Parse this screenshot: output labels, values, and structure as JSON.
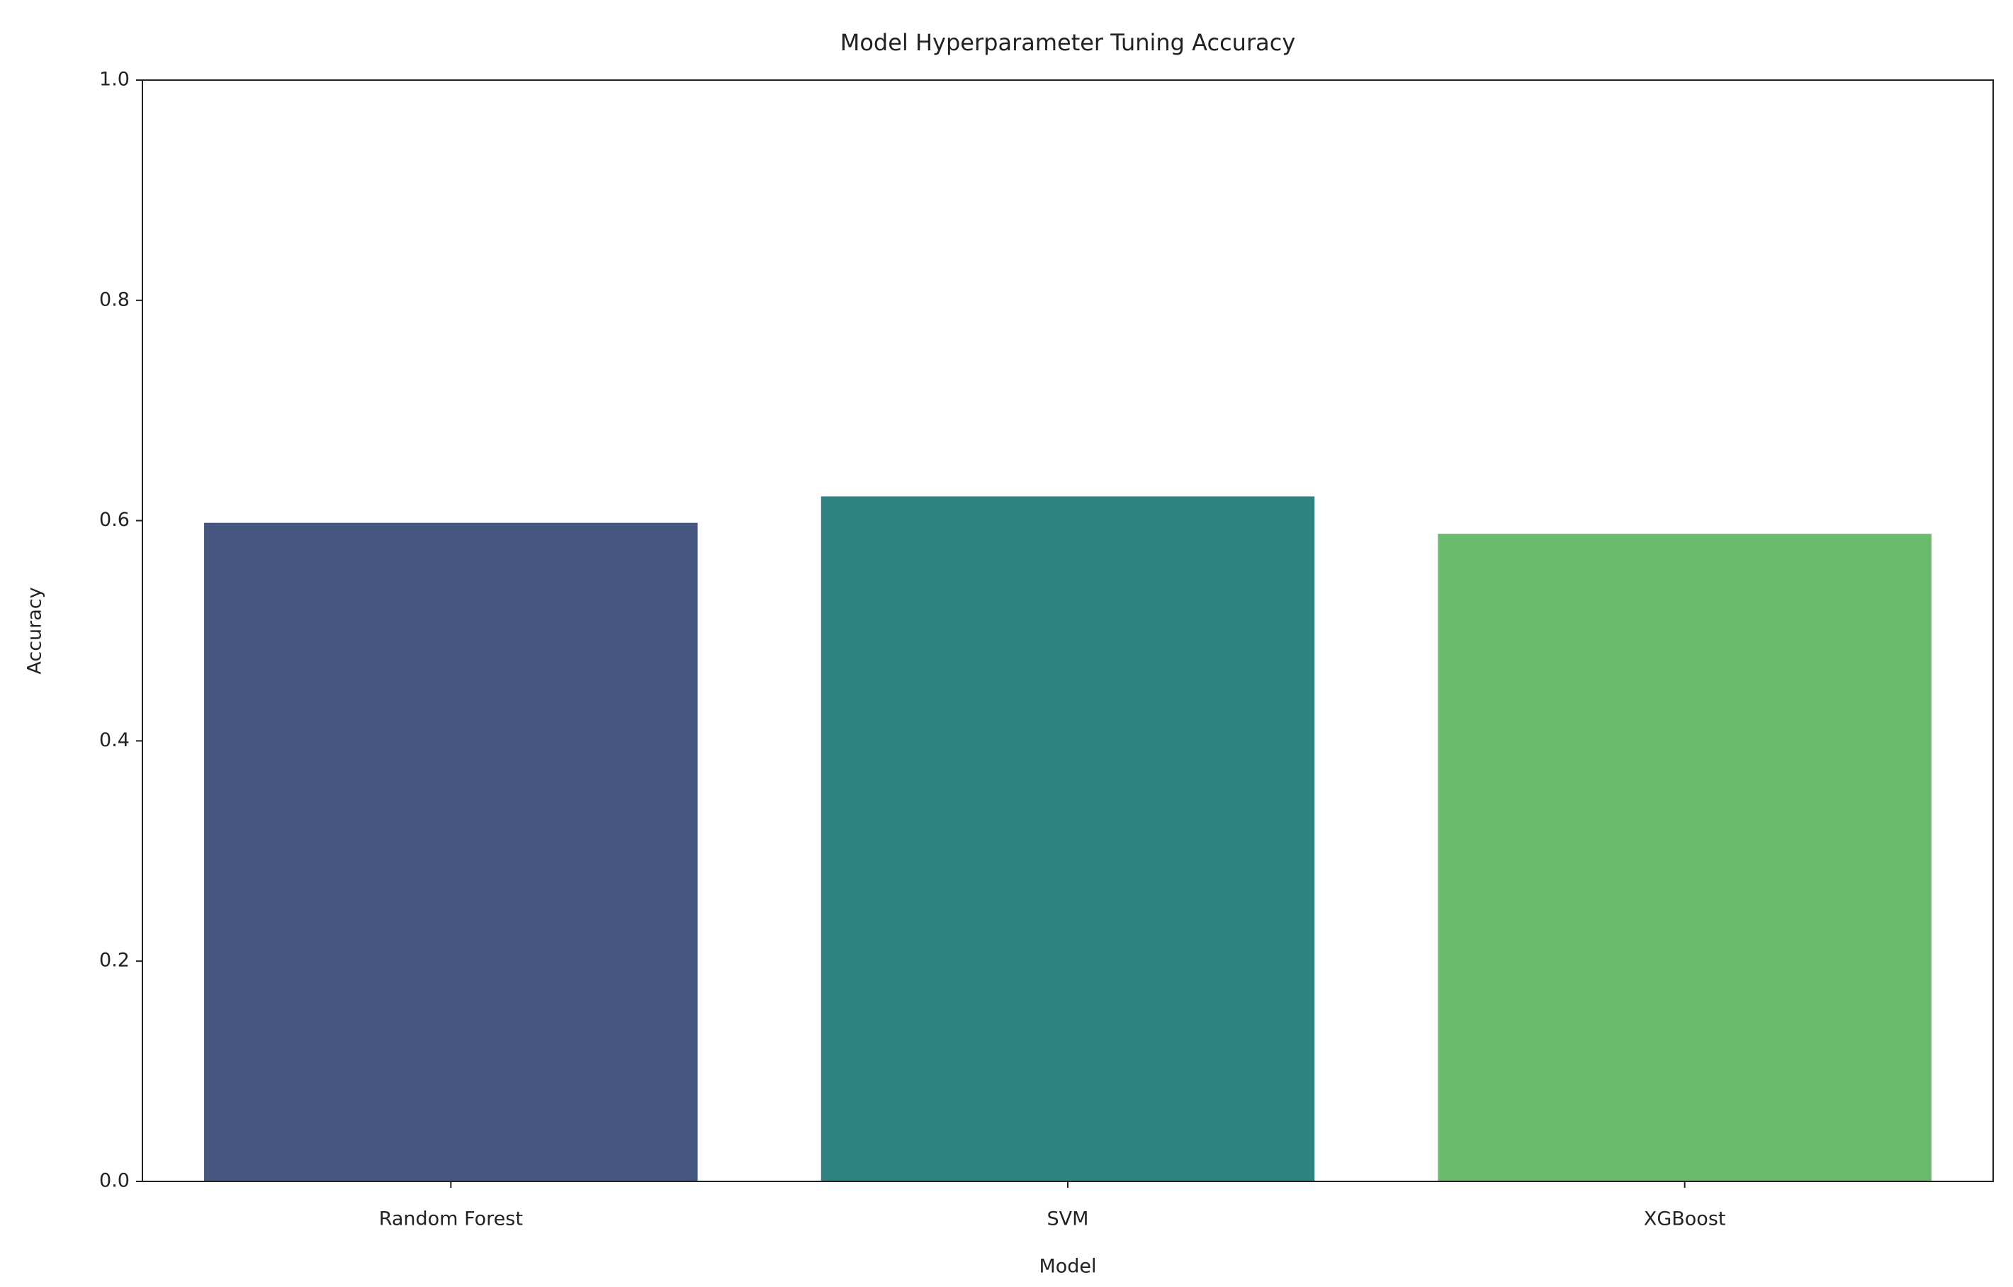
{
  "chart_data": {
    "type": "bar",
    "title": "Model Hyperparameter Tuning Accuracy",
    "x_label": "Model",
    "y_label": "Accuracy",
    "categories": [
      "Random Forest",
      "SVM",
      "XGBoost"
    ],
    "values": [
      0.598,
      0.622,
      0.588
    ],
    "colors": [
      "#455681",
      "#2e8480",
      "#6bbb6c"
    ],
    "ylim": [
      0,
      1
    ],
    "yticks": [
      {
        "value": 0,
        "label": "0.0"
      },
      0.2,
      0.4,
      0.6,
      0.8,
      {
        "value": 1,
        "label": "1.0"
      }
    ],
    "grid": false
  }
}
